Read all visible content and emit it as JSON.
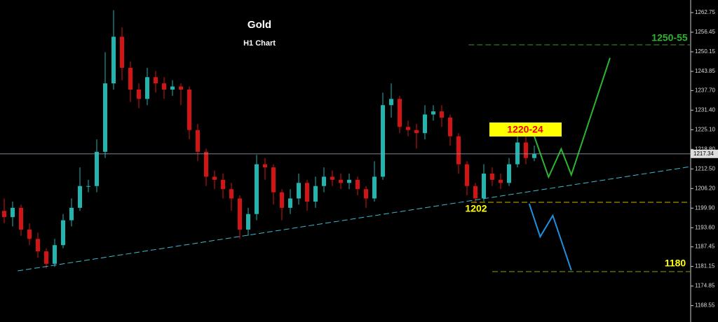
{
  "chart_data": {
    "type": "candlestick",
    "title": "Gold",
    "subtitle": "H1 Chart",
    "up_color": "#22b5b0",
    "down_color": "#d41414",
    "ylim": [
      1163.29,
      1266.8
    ],
    "yticks": [
      1262.75,
      1256.45,
      1250.15,
      1243.85,
      {
        "value": 1237.7,
        "label": "1237.70"
      },
      {
        "value": 1231.4,
        "label": "1231.40"
      },
      {
        "value": 1225.1,
        "label": "1225.10"
      },
      {
        "value": 1218.8,
        "label": "1218.80"
      },
      {
        "value": 1212.5,
        "label": "1212.50"
      },
      {
        "value": 1206.2,
        "label": "1206.20"
      },
      {
        "value": 1199.9,
        "label": "1199.90"
      },
      {
        "value": 1193.6,
        "label": "1193.60"
      },
      1187.45,
      1181.15,
      1174.85,
      1168.55
    ],
    "last_price": 1217.34,
    "open": [
      1199,
      1197,
      1200,
      1193,
      1190,
      1186,
      1182,
      1188,
      1196,
      1200,
      1207,
      1207,
      1218,
      1240,
      1255,
      1245,
      1238,
      1235,
      1242,
      1240,
      1238,
      1239,
      1238,
      1225,
      1218,
      1210,
      1209,
      1206,
      1203,
      1193,
      1198,
      1214,
      1213,
      1205,
      1200,
      1203,
      1208,
      1202,
      1207,
      1210,
      1209,
      1208,
      1209,
      1206,
      1203,
      1210,
      1233,
      1235,
      1226,
      1225,
      1224,
      1230,
      1231,
      1229,
      1223,
      1214,
      1207,
      1203,
      1211,
      1209,
      1208,
      1214,
      1221,
      1216
    ],
    "high": [
      1203,
      1202,
      1201,
      1195,
      1192,
      1187,
      1190,
      1198,
      1203,
      1213,
      1209,
      1222,
      1250,
      1263.5,
      1258,
      1247,
      1240,
      1245,
      1244,
      1242,
      1241,
      1240,
      1239,
      1227,
      1219,
      1212,
      1211,
      1208,
      1204,
      1200,
      1217,
      1216,
      1214,
      1206,
      1206,
      1211,
      1209,
      1210,
      1213,
      1212,
      1211,
      1211,
      1210,
      1207,
      1215,
      1237,
      1240,
      1236,
      1228,
      1227,
      1233,
      1233,
      1233,
      1230,
      1224,
      1215,
      1208,
      1214,
      1213,
      1211,
      1216,
      1224,
      1223,
      1220
    ],
    "low": [
      1195,
      1194,
      1191,
      1188,
      1184,
      1180.5,
      1181,
      1187,
      1194,
      1199,
      1205,
      1205,
      1216,
      1238,
      1241,
      1234,
      1232,
      1233,
      1237,
      1235,
      1236,
      1233,
      1222,
      1215,
      1207,
      1206,
      1203,
      1199,
      1190,
      1191,
      1196,
      1209,
      1201,
      1196,
      1198,
      1201,
      1199,
      1200,
      1205,
      1207,
      1206,
      1206,
      1204,
      1200,
      1202,
      1209,
      1229,
      1224,
      1223,
      1219,
      1222,
      1228,
      1226,
      1220,
      1211,
      1204,
      1201.5,
      1202,
      1207,
      1206,
      1207,
      1213,
      1214,
      1215
    ],
    "close": [
      1197,
      1200,
      1193,
      1190,
      1186,
      1182,
      1188,
      1196,
      1200,
      1207,
      1207,
      1218,
      1240,
      1255,
      1245,
      1238,
      1235,
      1242,
      1240,
      1238,
      1239,
      1238,
      1225,
      1218,
      1210,
      1209,
      1206,
      1203,
      1193,
      1198,
      1214,
      1213,
      1205,
      1200,
      1203,
      1208,
      1202,
      1207,
      1210,
      1209,
      1208,
      1209,
      1206,
      1203,
      1210,
      1233,
      1235,
      1226,
      1225,
      1224,
      1230,
      1231,
      1229,
      1223,
      1214,
      1207,
      1203,
      1211,
      1209,
      1208,
      1214,
      1221,
      1216,
      1217.34
    ],
    "lines": [
      {
        "x": [
          1.6,
          81.6
        ],
        "y": [
          1179.72,
          1213.25
        ],
        "color": "#3fb8d0",
        "dash": true
      },
      {
        "x": [
          55.2,
          81.6
        ],
        "y": [
          1252.4,
          1252.4
        ],
        "color": "#3a9a2a",
        "dash": true
      },
      {
        "x": [
          55.5,
          81.6
        ],
        "y": [
          1201.77,
          1201.77
        ],
        "color": "#c8b400",
        "dash": true
      },
      {
        "x": [
          58,
          81.6
        ],
        "y": [
          1179.5,
          1179.5
        ],
        "color": "#8aa000",
        "dash": true
      },
      {
        "x": [
          62.8,
          64.7,
          66.2,
          67.4,
          72
        ],
        "y": [
          1224.5,
          1209.9,
          1218.9,
          1210.6,
          1248.2
        ],
        "color": "#2db52d",
        "dash": false
      },
      {
        "x": [
          62.4,
          63.7,
          65.2,
          67.4
        ],
        "y": [
          1201.3,
          1190.7,
          1197.5,
          1179.9
        ],
        "color": "#1e90e0",
        "dash": false
      }
    ],
    "annotations": [
      "1250-55",
      "1220-24",
      "1202",
      "1180"
    ]
  }
}
